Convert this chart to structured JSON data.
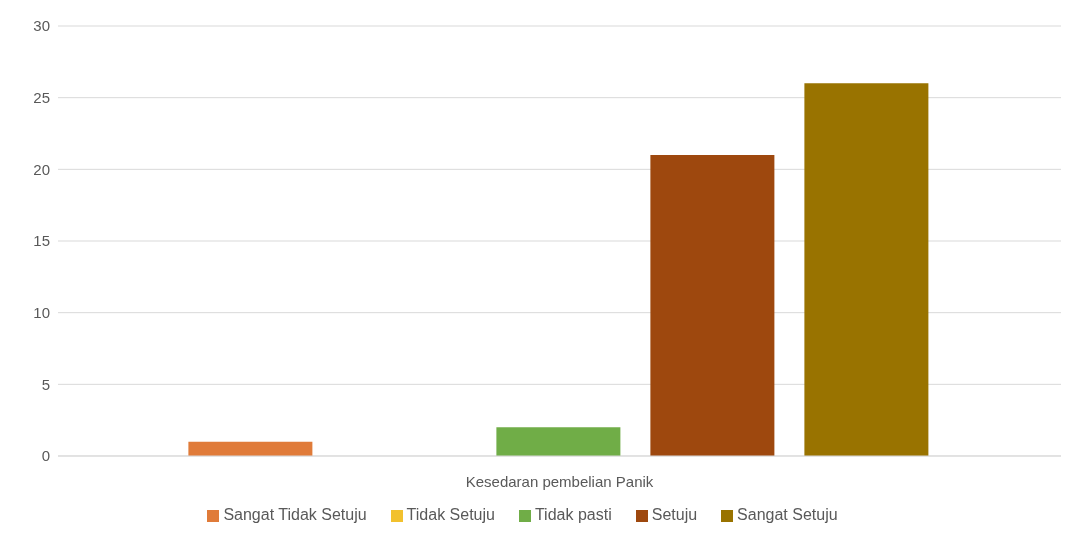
{
  "chart_data": {
    "type": "bar",
    "categories": [
      "Kesedaran pembelian Panik"
    ],
    "series": [
      {
        "name": "Sangat Tidak Setuju",
        "color": "#e07b39",
        "values": [
          1
        ]
      },
      {
        "name": "Tidak Setuju",
        "color": "#f2c12e",
        "values": [
          0
        ]
      },
      {
        "name": "Tidak pasti",
        "color": "#70ad47",
        "values": [
          2
        ]
      },
      {
        "name": "Setuju",
        "color": "#9e480e",
        "values": [
          21
        ]
      },
      {
        "name": "Sangat Setuju",
        "color": "#997300",
        "values": [
          26
        ]
      }
    ],
    "ylim": [
      0,
      30
    ],
    "yticks": [
      0,
      5,
      10,
      15,
      20,
      25,
      30
    ],
    "grid": "y",
    "legend": "bottom"
  }
}
